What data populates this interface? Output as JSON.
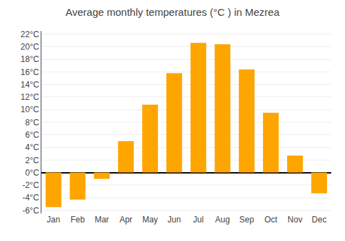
{
  "chart_data": {
    "type": "bar",
    "title": "Average monthly temperatures (°C ) in Mezrea",
    "categories": [
      "Jan",
      "Feb",
      "Mar",
      "Apr",
      "May",
      "Jun",
      "Jul",
      "Aug",
      "Sep",
      "Oct",
      "Nov",
      "Dec"
    ],
    "values": [
      -5.5,
      -4.3,
      -1.0,
      5.0,
      10.8,
      15.8,
      20.6,
      20.4,
      16.4,
      9.5,
      2.7,
      -3.3
    ],
    "color": "#FFA500",
    "ylim": [
      -6.5,
      22.5
    ],
    "yticks": [
      {
        "value": -6,
        "label": "-6°C"
      },
      {
        "value": -4,
        "label": "-4°C"
      },
      {
        "value": -2,
        "label": "-2°C"
      },
      {
        "value": 0,
        "label": "0°C"
      },
      {
        "value": 2,
        "label": "2°C"
      },
      {
        "value": 4,
        "label": "4°C"
      },
      {
        "value": 6,
        "label": "6°C"
      },
      {
        "value": 8,
        "label": "8°C"
      },
      {
        "value": 10,
        "label": "10°C"
      },
      {
        "value": 12,
        "label": "12°C"
      },
      {
        "value": 14,
        "label": "14°C"
      },
      {
        "value": 16,
        "label": "16°C"
      },
      {
        "value": 18,
        "label": "18°C"
      },
      {
        "value": 20,
        "label": "20°C"
      },
      {
        "value": 22,
        "label": "22°C"
      }
    ],
    "grid": true
  }
}
